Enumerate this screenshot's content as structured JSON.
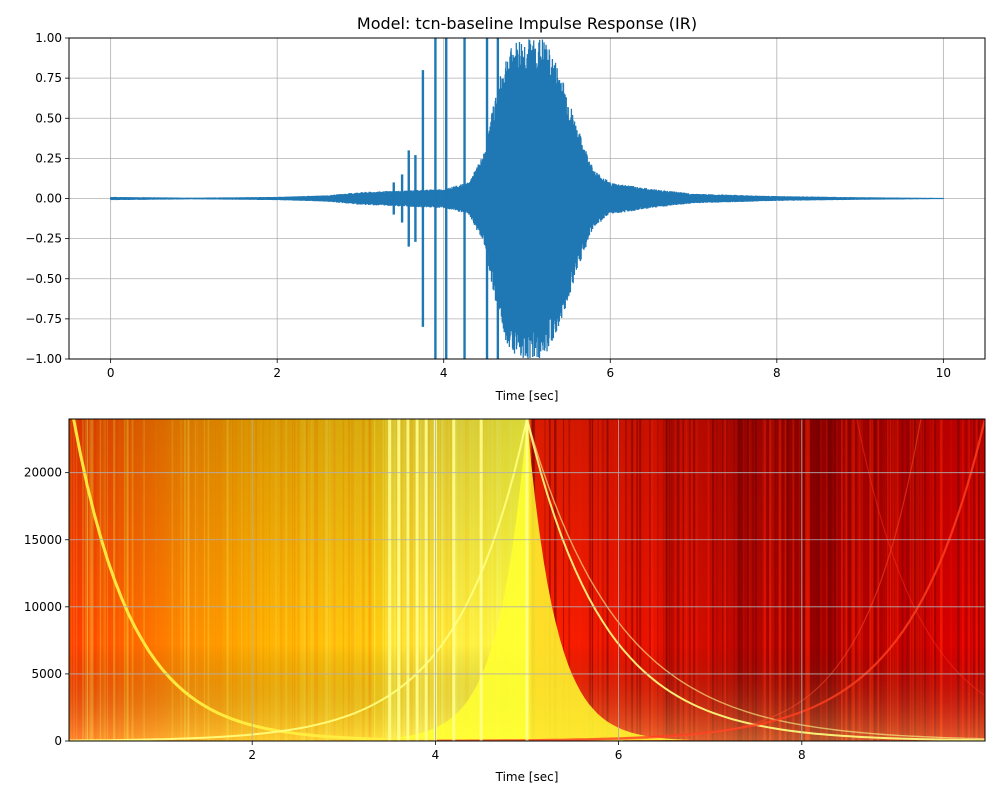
{
  "chart_data": [
    {
      "type": "line",
      "title": "Model: tcn-baseline Impulse Response (IR)",
      "xlabel": "Time [sec]",
      "ylabel": "",
      "xlim": [
        -0.5,
        10.5
      ],
      "ylim": [
        -1.0,
        1.0
      ],
      "x_ticks": [
        0,
        2,
        4,
        6,
        8,
        10
      ],
      "x_tick_labels": [
        "0",
        "2",
        "4",
        "6",
        "8",
        "10"
      ],
      "y_ticks": [
        -1.0,
        -0.75,
        -0.5,
        -0.25,
        0.0,
        0.25,
        0.5,
        0.75,
        1.0
      ],
      "y_tick_labels": [
        "−1.00",
        "−0.75",
        "−0.50",
        "−0.25",
        "0.00",
        "0.25",
        "0.50",
        "0.75",
        "1.00"
      ],
      "grid": true,
      "series": [
        {
          "color": "#1f77b4",
          "x_range": [
            0,
            10
          ],
          "envelope": [
            [
              0.0,
              0.01
            ],
            [
              1.0,
              0.005
            ],
            [
              2.0,
              0.01
            ],
            [
              2.6,
              0.02
            ],
            [
              3.0,
              0.04
            ],
            [
              3.5,
              0.05
            ],
            [
              4.0,
              0.06
            ],
            [
              4.3,
              0.1
            ],
            [
              4.5,
              0.3
            ],
            [
              4.6,
              0.6
            ],
            [
              4.75,
              0.9
            ],
            [
              4.9,
              1.0
            ],
            [
              5.2,
              1.0
            ],
            [
              5.4,
              0.8
            ],
            [
              5.6,
              0.45
            ],
            [
              5.8,
              0.18
            ],
            [
              6.0,
              0.1
            ],
            [
              6.5,
              0.06
            ],
            [
              7.0,
              0.03
            ],
            [
              8.0,
              0.015
            ],
            [
              9.0,
              0.008
            ],
            [
              10.0,
              0.003
            ]
          ],
          "spikes": [
            {
              "t": 3.4,
              "amp": 0.1
            },
            {
              "t": 3.5,
              "amp": 0.15
            },
            {
              "t": 3.58,
              "amp": 0.3
            },
            {
              "t": 3.66,
              "amp": 0.27
            },
            {
              "t": 3.75,
              "amp": 0.8
            },
            {
              "t": 3.9,
              "amp": 1.0
            },
            {
              "t": 4.03,
              "amp": 1.0
            },
            {
              "t": 4.25,
              "amp": 1.0
            },
            {
              "t": 4.52,
              "amp": 1.0
            },
            {
              "t": 4.65,
              "amp": 1.0
            }
          ]
        }
      ]
    },
    {
      "type": "heatmap",
      "xlabel": "Time [sec]",
      "ylabel": "",
      "xlim": [
        0.0,
        10.0
      ],
      "ylim": [
        0,
        24000
      ],
      "x_ticks": [
        2,
        4,
        6,
        8
      ],
      "x_tick_labels": [
        "2",
        "4",
        "6",
        "8"
      ],
      "y_ticks": [
        0,
        5000,
        10000,
        15000,
        20000
      ],
      "y_tick_labels": [
        "0",
        "5000",
        "10000",
        "15000",
        "20000"
      ],
      "grid": true,
      "colormap": "hot",
      "bright_vertical_lines_at": [
        3.5,
        3.6,
        3.7,
        3.8,
        3.9,
        4.0,
        4.2,
        4.5,
        5.0
      ],
      "bright_region": [
        3.3,
        5.0
      ],
      "dark_region": [
        7.0,
        9.0
      ]
    }
  ]
}
